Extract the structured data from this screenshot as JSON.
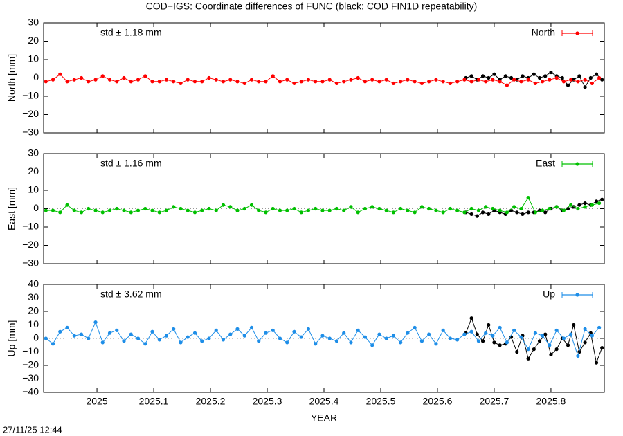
{
  "title": "COD−IGS: Coordinate differences of FUNC (black: COD FIN1D repeatability)",
  "footer": "27/11/25 12:44",
  "chart_data": [
    {
      "type": "line",
      "ylabel": "North [mm]",
      "annotation": "std ± 1.18 mm",
      "xlim": [
        2024.906,
        2025.894
      ],
      "xticks": [
        2025,
        2025.1,
        2025.2,
        2025.3,
        2025.4,
        2025.5,
        2025.6,
        2025.7,
        2025.8
      ],
      "ylim": [
        -30,
        30
      ],
      "yticks": [
        {
          "value": -30,
          "label": "−30"
        },
        {
          "value": -20,
          "label": "−20"
        },
        {
          "value": -10,
          "label": "−10"
        },
        0,
        10,
        20,
        30
      ],
      "series": [
        {
          "name": "North",
          "color": "#ff0000",
          "x": [
            2024.91,
            2024.9225,
            2024.935,
            2024.9475,
            2024.96,
            2024.9725,
            2024.985,
            2024.9975,
            2025.01,
            2025.0225,
            2025.035,
            2025.0475,
            2025.06,
            2025.0725,
            2025.085,
            2025.0975,
            2025.11,
            2025.1225,
            2025.135,
            2025.1475,
            2025.16,
            2025.1725,
            2025.185,
            2025.1975,
            2025.21,
            2025.2225,
            2025.235,
            2025.2475,
            2025.26,
            2025.2725,
            2025.285,
            2025.2975,
            2025.31,
            2025.3225,
            2025.335,
            2025.3475,
            2025.36,
            2025.3725,
            2025.385,
            2025.3975,
            2025.41,
            2025.4225,
            2025.435,
            2025.4475,
            2025.46,
            2025.4725,
            2025.485,
            2025.4975,
            2025.51,
            2025.5225,
            2025.535,
            2025.5475,
            2025.56,
            2025.5725,
            2025.585,
            2025.5975,
            2025.61,
            2025.6225,
            2025.635,
            2025.6475,
            2025.66,
            2025.6725,
            2025.685,
            2025.6975,
            2025.71,
            2025.7225,
            2025.735,
            2025.7475,
            2025.76,
            2025.7725,
            2025.785,
            2025.7975,
            2025.81,
            2025.8225,
            2025.835,
            2025.8475,
            2025.86,
            2025.8725,
            2025.885
          ],
          "values": [
            -2,
            -1,
            2,
            -2,
            -1,
            0,
            -2,
            -1,
            1,
            -1,
            -2,
            0,
            -2,
            -1,
            1,
            -2,
            -2,
            -1,
            -2,
            -3,
            -1,
            -2,
            -2,
            0,
            -1,
            -2,
            -1,
            -2,
            -3,
            -1,
            -2,
            -2,
            1,
            -2,
            -1,
            -3,
            -2,
            -1,
            -2,
            -2,
            -1,
            -3,
            -2,
            -1,
            0,
            -2,
            -1,
            -2,
            -1,
            -3,
            -2,
            -1,
            -2,
            -3,
            -2,
            -1,
            -2,
            -3,
            -2,
            -1,
            -2,
            -1,
            -2,
            -1,
            -2,
            -4,
            -1,
            -2,
            -1,
            -3,
            -2,
            -1,
            0,
            -2,
            -1,
            -2,
            -1,
            -3,
            0
          ]
        },
        {
          "color": "#000000",
          "x": [
            2025.65,
            2025.66,
            2025.67,
            2025.68,
            2025.69,
            2025.7,
            2025.71,
            2025.72,
            2025.73,
            2025.74,
            2025.75,
            2025.76,
            2025.77,
            2025.78,
            2025.79,
            2025.8,
            2025.81,
            2025.82,
            2025.83,
            2025.84,
            2025.85,
            2025.86,
            2025.87,
            2025.88,
            2025.89
          ],
          "values": [
            0,
            1,
            -1,
            1,
            0,
            2,
            -1,
            1,
            0,
            -1,
            1,
            0,
            2,
            0,
            1,
            3,
            1,
            0,
            -4,
            -1,
            1,
            -5,
            0,
            2,
            -1
          ]
        }
      ]
    },
    {
      "type": "line",
      "ylabel": "East [mm]",
      "annotation": "std ± 1.16 mm",
      "xlim": [
        2024.906,
        2025.894
      ],
      "xticks": [
        2025,
        2025.1,
        2025.2,
        2025.3,
        2025.4,
        2025.5,
        2025.6,
        2025.7,
        2025.8
      ],
      "ylim": [
        -30,
        30
      ],
      "yticks": [
        {
          "value": -30,
          "label": "−30"
        },
        {
          "value": -20,
          "label": "−20"
        },
        {
          "value": -10,
          "label": "−10"
        },
        0,
        10,
        20,
        30
      ],
      "series": [
        {
          "name": "East",
          "color": "#00c000",
          "x": [
            2024.91,
            2024.9225,
            2024.935,
            2024.9475,
            2024.96,
            2024.9725,
            2024.985,
            2024.9975,
            2025.01,
            2025.0225,
            2025.035,
            2025.0475,
            2025.06,
            2025.0725,
            2025.085,
            2025.0975,
            2025.11,
            2025.1225,
            2025.135,
            2025.1475,
            2025.16,
            2025.1725,
            2025.185,
            2025.1975,
            2025.21,
            2025.2225,
            2025.235,
            2025.2475,
            2025.26,
            2025.2725,
            2025.285,
            2025.2975,
            2025.31,
            2025.3225,
            2025.335,
            2025.3475,
            2025.36,
            2025.3725,
            2025.385,
            2025.3975,
            2025.41,
            2025.4225,
            2025.435,
            2025.4475,
            2025.46,
            2025.4725,
            2025.485,
            2025.4975,
            2025.51,
            2025.5225,
            2025.535,
            2025.5475,
            2025.56,
            2025.5725,
            2025.585,
            2025.5975,
            2025.61,
            2025.6225,
            2025.635,
            2025.6475,
            2025.66,
            2025.6725,
            2025.685,
            2025.6975,
            2025.71,
            2025.7225,
            2025.735,
            2025.7475,
            2025.76,
            2025.7725,
            2025.785,
            2025.7975,
            2025.81,
            2025.8225,
            2025.835,
            2025.8475,
            2025.86,
            2025.8725,
            2025.885
          ],
          "values": [
            -1,
            -1,
            -2,
            2,
            -1,
            -2,
            0,
            -1,
            -2,
            -1,
            0,
            -1,
            -2,
            -1,
            0,
            -1,
            -2,
            -1,
            1,
            0,
            -1,
            -2,
            -1,
            0,
            -1,
            2,
            1,
            -1,
            0,
            2,
            -1,
            -2,
            0,
            -1,
            -1,
            0,
            -2,
            -1,
            0,
            -1,
            -1,
            0,
            -1,
            1,
            -2,
            0,
            1,
            0,
            -1,
            -2,
            0,
            -1,
            -2,
            1,
            0,
            -1,
            -2,
            0,
            -1,
            -2,
            0,
            -1,
            1,
            0,
            -1,
            -2,
            1,
            0,
            6,
            -2,
            -1,
            0,
            1,
            -1,
            2,
            0,
            1,
            2,
            3
          ]
        },
        {
          "color": "#000000",
          "x": [
            2025.65,
            2025.66,
            2025.67,
            2025.68,
            2025.69,
            2025.7,
            2025.71,
            2025.72,
            2025.73,
            2025.74,
            2025.75,
            2025.76,
            2025.77,
            2025.78,
            2025.79,
            2025.8,
            2025.81,
            2025.82,
            2025.83,
            2025.84,
            2025.85,
            2025.86,
            2025.87,
            2025.88,
            2025.89
          ],
          "values": [
            -2,
            -3,
            -4,
            -2,
            -3,
            -1,
            -2,
            -3,
            -1,
            -2,
            -3,
            -2,
            -2,
            -1,
            -2,
            0,
            1,
            -1,
            0,
            1,
            2,
            3,
            2,
            4,
            5
          ]
        }
      ]
    },
    {
      "type": "line",
      "ylabel": "Up [mm]",
      "annotation": "std ± 3.62 mm",
      "xlabel": "YEAR",
      "xlim": [
        2024.906,
        2025.894
      ],
      "xticks": [
        2025,
        2025.1,
        2025.2,
        2025.3,
        2025.4,
        2025.5,
        2025.6,
        2025.7,
        2025.8
      ],
      "ylim": [
        -40,
        40
      ],
      "yticks": [
        {
          "value": -40,
          "label": "−40"
        },
        {
          "value": -30,
          "label": "−30"
        },
        {
          "value": -20,
          "label": "−20"
        },
        {
          "value": -10,
          "label": "−10"
        },
        0,
        10,
        20,
        30,
        40
      ],
      "series": [
        {
          "name": "Up",
          "color": "#1e8ee8",
          "x": [
            2024.91,
            2024.9225,
            2024.935,
            2024.9475,
            2024.96,
            2024.9725,
            2024.985,
            2024.9975,
            2025.01,
            2025.0225,
            2025.035,
            2025.0475,
            2025.06,
            2025.0725,
            2025.085,
            2025.0975,
            2025.11,
            2025.1225,
            2025.135,
            2025.1475,
            2025.16,
            2025.1725,
            2025.185,
            2025.1975,
            2025.21,
            2025.2225,
            2025.235,
            2025.2475,
            2025.26,
            2025.2725,
            2025.285,
            2025.2975,
            2025.31,
            2025.3225,
            2025.335,
            2025.3475,
            2025.36,
            2025.3725,
            2025.385,
            2025.3975,
            2025.41,
            2025.4225,
            2025.435,
            2025.4475,
            2025.46,
            2025.4725,
            2025.485,
            2025.4975,
            2025.51,
            2025.5225,
            2025.535,
            2025.5475,
            2025.56,
            2025.5725,
            2025.585,
            2025.5975,
            2025.61,
            2025.6225,
            2025.635,
            2025.6475,
            2025.66,
            2025.6725,
            2025.685,
            2025.6975,
            2025.71,
            2025.7225,
            2025.735,
            2025.7475,
            2025.76,
            2025.7725,
            2025.785,
            2025.7975,
            2025.81,
            2025.8225,
            2025.835,
            2025.8475,
            2025.86,
            2025.8725,
            2025.885
          ],
          "values": [
            0,
            -4,
            5,
            8,
            2,
            3,
            0,
            12,
            -3,
            4,
            6,
            -2,
            3,
            0,
            -4,
            5,
            -1,
            2,
            7,
            -3,
            1,
            4,
            -2,
            0,
            6,
            -1,
            3,
            7,
            2,
            8,
            -2,
            4,
            6,
            0,
            -3,
            5,
            1,
            7,
            -4,
            2,
            0,
            -2,
            4,
            -3,
            6,
            1,
            -5,
            3,
            0,
            2,
            -3,
            4,
            8,
            -2,
            3,
            -4,
            6,
            0,
            -1,
            3,
            5,
            -2,
            4,
            2,
            8,
            -3,
            6,
            1,
            -8,
            4,
            2,
            -5,
            6,
            0,
            3,
            -13,
            7,
            2,
            8
          ]
        },
        {
          "color": "#000000",
          "x": [
            2025.65,
            2025.66,
            2025.67,
            2025.68,
            2025.69,
            2025.7,
            2025.71,
            2025.72,
            2025.73,
            2025.74,
            2025.75,
            2025.76,
            2025.77,
            2025.78,
            2025.79,
            2025.8,
            2025.81,
            2025.82,
            2025.83,
            2025.84,
            2025.85,
            2025.86,
            2025.87,
            2025.88,
            2025.89
          ],
          "values": [
            4,
            15,
            3,
            -2,
            10,
            -3,
            -5,
            -4,
            1,
            -10,
            2,
            -15,
            -8,
            -2,
            3,
            -12,
            -8,
            0,
            -5,
            10,
            -10,
            -3,
            4,
            -18,
            -7
          ]
        }
      ]
    }
  ]
}
